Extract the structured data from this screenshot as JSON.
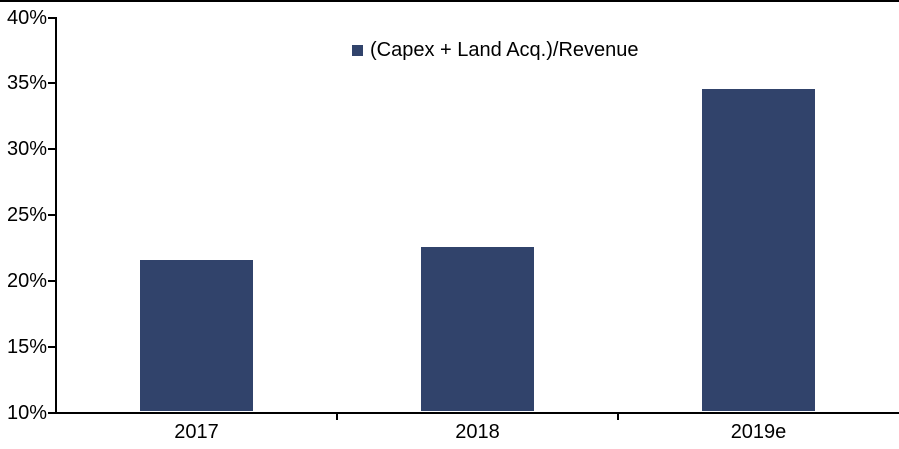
{
  "chart_data": {
    "type": "bar",
    "title": "",
    "legend": "(Capex + Land Acq.)/Revenue",
    "legend_position": "top-center",
    "categories": [
      "2017",
      "2018",
      "2019e"
    ],
    "values": [
      21.6,
      22.6,
      34.6
    ],
    "unit": "%",
    "ylim": [
      10,
      40
    ],
    "y_tick_step": 5,
    "y_tick_labels": [
      "10%",
      "15%",
      "20%",
      "25%",
      "30%",
      "35%",
      "40%"
    ],
    "grid": false,
    "bar_color": "#31436B",
    "axis_color": "#000000",
    "text_color": "#000000",
    "background_color": "#FFFFFF"
  }
}
